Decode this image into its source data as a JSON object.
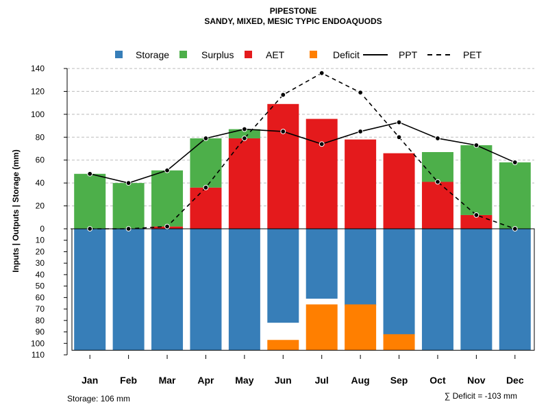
{
  "colors": {
    "storage": "#377EB8",
    "surplus": "#4DAF4A",
    "aet": "#E41A1C",
    "deficit": "#FF7F00",
    "line": "#000000",
    "grid": "#bbbbbb"
  },
  "chart_data": {
    "type": "bar",
    "title": "PIPESTONE",
    "subtitle": "SANDY, MIXED, MESIC TYPIC ENDOAQUODS",
    "ylabel": "Inputs | Outputs | Storage    (mm)",
    "ylim_top": [
      0,
      140
    ],
    "ylim_bottom": [
      0,
      110
    ],
    "upper_ticks": [
      "0",
      "20",
      "40",
      "60",
      "80",
      "100",
      "120",
      "140"
    ],
    "lower_ticks": [
      "10",
      "20",
      "30",
      "40",
      "50",
      "60",
      "70",
      "80",
      "90",
      "100",
      "110"
    ],
    "categories": [
      "Jan",
      "Feb",
      "Mar",
      "Apr",
      "May",
      "Jun",
      "Jul",
      "Aug",
      "Sep",
      "Oct",
      "Nov",
      "Dec"
    ],
    "legend": [
      {
        "key": "storage",
        "label": "Storage",
        "kind": "box"
      },
      {
        "key": "surplus",
        "label": "Surplus",
        "kind": "box"
      },
      {
        "key": "aet",
        "label": "AET",
        "kind": "box"
      },
      {
        "key": "deficit",
        "label": "Deficit",
        "kind": "box"
      },
      {
        "key": "ppt",
        "label": "PPT",
        "kind": "solid"
      },
      {
        "key": "pet",
        "label": "PET",
        "kind": "dashed"
      }
    ],
    "series": [
      {
        "name": "AET",
        "key": "aet",
        "values": [
          0,
          0,
          2,
          36,
          79,
          109,
          96,
          78,
          66,
          41,
          12,
          0
        ]
      },
      {
        "name": "Surplus",
        "key": "surplus",
        "values": [
          48,
          40,
          49,
          43,
          8,
          0,
          0,
          0,
          0,
          26,
          61,
          58
        ]
      },
      {
        "name": "Storage",
        "key": "storage",
        "values": [
          106,
          106,
          106,
          106,
          106,
          82,
          61,
          67,
          94,
          106,
          106,
          106
        ]
      },
      {
        "name": "Deficit",
        "key": "deficit",
        "values": [
          0,
          0,
          0,
          0,
          0,
          9,
          40,
          40,
          14,
          0,
          0,
          0
        ]
      },
      {
        "name": "PPT",
        "key": "ppt",
        "values": [
          48,
          40,
          51,
          79,
          87,
          85,
          74,
          85,
          93,
          79,
          73,
          58
        ]
      },
      {
        "name": "PET",
        "key": "pet",
        "values": [
          0,
          0,
          2,
          36,
          79,
          117,
          136,
          119,
          80,
          41,
          12,
          0
        ]
      }
    ],
    "storage_capacity": 106,
    "storage_label": "Storage: 106 mm",
    "deficit_label": "∑ Deficit = -103 mm"
  }
}
